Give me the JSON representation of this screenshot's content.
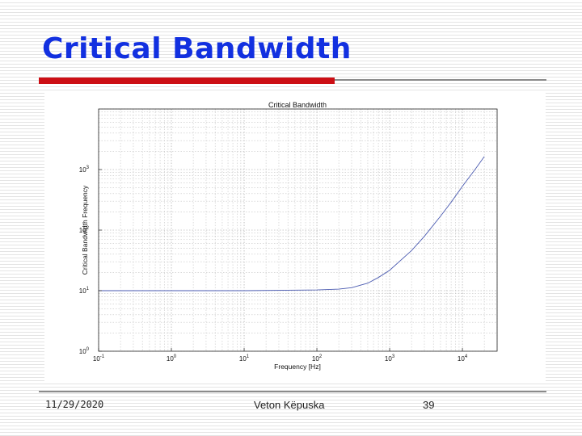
{
  "slide": {
    "title": "Critical Bandwidth",
    "footer": {
      "date": "11/29/2020",
      "author": "Veton Këpuska",
      "page": "39"
    },
    "colors": {
      "title": "#1230e0",
      "accent_bar": "#cc0e14",
      "rule": "#8a8a8a"
    }
  },
  "chart_data": {
    "type": "line",
    "title": "Critical Bandwidth",
    "xlabel": "Frequency [Hz]",
    "ylabel": "Critical Bandwidth Frequency",
    "xscale": "log",
    "yscale": "log",
    "xlim": [
      0.1,
      30000
    ],
    "ylim": [
      1,
      10000
    ],
    "grid": true,
    "grid_style": "dotted, major and minor",
    "x_ticks": [
      {
        "value": 0.1,
        "base": "10",
        "exp": "-1"
      },
      {
        "value": 1,
        "base": "10",
        "exp": "0"
      },
      {
        "value": 10,
        "base": "10",
        "exp": "1"
      },
      {
        "value": 100,
        "base": "10",
        "exp": "2"
      },
      {
        "value": 1000,
        "base": "10",
        "exp": "3"
      },
      {
        "value": 10000,
        "base": "10",
        "exp": "4"
      }
    ],
    "y_ticks": [
      {
        "value": 1,
        "base": "10",
        "exp": "0"
      },
      {
        "value": 10,
        "base": "10",
        "exp": "1"
      },
      {
        "value": 100,
        "base": "10",
        "exp": "2"
      },
      {
        "value": 1000,
        "base": "10",
        "exp": "3"
      }
    ],
    "series": [
      {
        "color": "#4a5ab0",
        "x": [
          0.1,
          1,
          10,
          100,
          200,
          300,
          500,
          700,
          1000,
          2000,
          3000,
          5000,
          7000,
          10000,
          15000,
          20000
        ],
        "y": [
          10,
          10,
          10,
          10.3,
          10.6,
          11.2,
          13.3,
          16.5,
          21.7,
          46,
          79,
          170,
          289,
          529,
          1012,
          1639
        ]
      }
    ]
  }
}
